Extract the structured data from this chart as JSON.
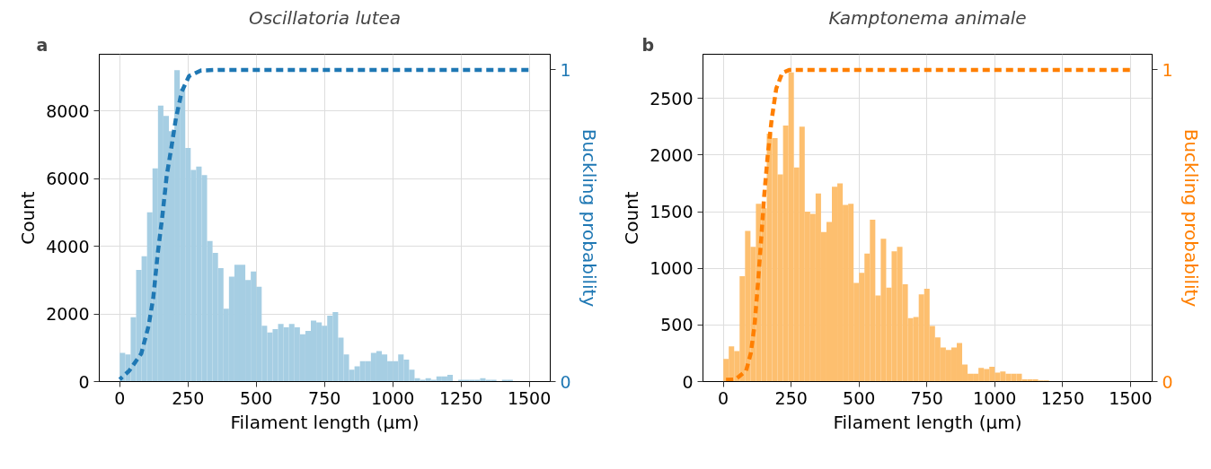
{
  "chart_data": [
    {
      "type": "histogram",
      "title": "Oscillatoria lutea",
      "xlabel": "Filament length (μm)",
      "ylabel": "Count",
      "y2label": "Buckling probability",
      "annotations": [
        "a"
      ],
      "xlim": [
        -75,
        1577
      ],
      "xticks": [
        0,
        250,
        500,
        750,
        1000,
        1250,
        1500
      ],
      "ylim": [
        0,
        9670
      ],
      "yticks": [
        0,
        2000,
        4000,
        6000,
        8000
      ],
      "y2lim": [
        0,
        1.05
      ],
      "y2ticks": [
        0,
        1
      ],
      "grid": true,
      "series": [
        {
          "color": "#a6cee3",
          "bins": [
            0,
            20,
            40,
            60,
            80,
            100,
            120,
            140,
            160,
            180,
            200,
            220,
            240,
            260,
            280,
            300,
            320,
            340,
            360,
            380,
            400,
            420,
            440,
            460,
            480,
            500,
            520,
            540,
            560,
            580,
            600,
            620,
            640,
            660,
            680,
            700,
            720,
            740,
            760,
            780,
            800,
            820,
            840,
            860,
            880,
            900,
            920,
            940,
            960,
            980,
            1000,
            1020,
            1040,
            1060,
            1080,
            1100,
            1120,
            1140,
            1160,
            1180,
            1200,
            1220,
            1240,
            1260,
            1280,
            1300,
            1320,
            1340,
            1360,
            1380,
            1400,
            1420,
            1440
          ],
          "values": [
            850,
            800,
            1900,
            3300,
            3700,
            5000,
            6300,
            8150,
            7850,
            7400,
            9200,
            8650,
            6900,
            6250,
            6350,
            6100,
            4150,
            3800,
            3350,
            2150,
            3100,
            3450,
            3450,
            3000,
            3250,
            2800,
            1650,
            1450,
            1550,
            1700,
            1600,
            1700,
            1600,
            1400,
            1500,
            1800,
            1750,
            1650,
            1950,
            2050,
            1300,
            800,
            350,
            450,
            600,
            600,
            850,
            900,
            800,
            600,
            600,
            800,
            650,
            350,
            100,
            50,
            100,
            50,
            150,
            150,
            200,
            0,
            50,
            50,
            50,
            50,
            100,
            50,
            50,
            0,
            50,
            50
          ]
        },
        {
          "type": "line",
          "axis": "y2",
          "color": "#1f78b4",
          "line_style": "dashed",
          "x": [
            0,
            35,
            79,
            106,
            123,
            139,
            156,
            172,
            189,
            205,
            227,
            254,
            298,
            364,
            1500
          ],
          "values": [
            0.007,
            0.035,
            0.09,
            0.18,
            0.27,
            0.41,
            0.53,
            0.66,
            0.75,
            0.84,
            0.93,
            0.98,
            0.998,
            1,
            1
          ]
        }
      ]
    },
    {
      "type": "histogram",
      "title": "Kamptonema animale",
      "xlabel": "Filament length (μm)",
      "ylabel": "Count",
      "y2label": "Buckling probability",
      "annotations": [
        "b"
      ],
      "xlim": [
        -75,
        1580
      ],
      "xticks": [
        0,
        250,
        500,
        750,
        1000,
        1250,
        1500
      ],
      "ylim": [
        0,
        2890
      ],
      "yticks": [
        0,
        500,
        1000,
        1500,
        2000,
        2500
      ],
      "y2lim": [
        0,
        1.05
      ],
      "y2ticks": [
        0,
        1
      ],
      "grid": true,
      "series": [
        {
          "color": "#fdbf6f",
          "bins": [
            0,
            20,
            40,
            60,
            80,
            100,
            120,
            140,
            160,
            180,
            200,
            220,
            240,
            260,
            280,
            300,
            320,
            340,
            360,
            380,
            400,
            420,
            440,
            460,
            480,
            500,
            520,
            540,
            560,
            580,
            600,
            620,
            640,
            660,
            680,
            700,
            720,
            740,
            760,
            780,
            800,
            820,
            840,
            860,
            880,
            900,
            920,
            940,
            960,
            980,
            1000,
            1020,
            1040,
            1060,
            1080,
            1100,
            1120,
            1140,
            1160,
            1180,
            1200
          ],
          "values": [
            200,
            310,
            270,
            930,
            1330,
            1190,
            1570,
            1530,
            2190,
            2150,
            1830,
            2260,
            2730,
            1890,
            2250,
            1500,
            1480,
            1660,
            1320,
            1410,
            1720,
            1750,
            1560,
            1570,
            870,
            960,
            1130,
            1430,
            760,
            1260,
            830,
            1150,
            1190,
            860,
            560,
            570,
            770,
            820,
            490,
            390,
            300,
            280,
            300,
            340,
            150,
            70,
            70,
            120,
            110,
            130,
            80,
            90,
            70,
            70,
            70,
            20,
            20,
            20,
            10,
            10
          ]
        },
        {
          "type": "line",
          "axis": "y2",
          "color": "#ff7f00",
          "line_style": "dashed",
          "x": [
            0,
            45,
            84,
            101,
            115,
            128,
            139,
            150,
            164,
            178,
            195,
            217,
            244,
            1500
          ],
          "values": [
            0.005,
            0.007,
            0.035,
            0.09,
            0.18,
            0.32,
            0.45,
            0.59,
            0.73,
            0.84,
            0.94,
            0.99,
            1,
            1
          ]
        }
      ]
    }
  ]
}
